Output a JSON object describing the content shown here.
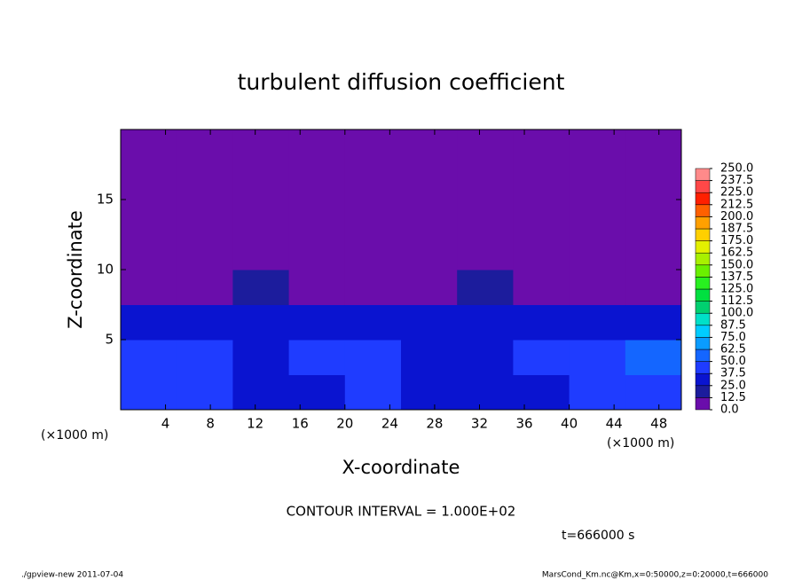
{
  "chart_data": {
    "type": "heatmap",
    "title": "turbulent diffusion coefficient",
    "xlabel": "X-coordinate",
    "ylabel": "Z-coordinate",
    "x_unit": "(×1000 m)",
    "note": "CONTOUR INTERVAL = 1.000E+02",
    "time_label": "t=666000 s",
    "footer_left": "./gpview-new   2011-07-04",
    "footer_right": "MarsCond_Km.nc@Km,x=0:50000,z=0:20000,t=666000",
    "x": [
      2.5,
      7.5,
      12.5,
      17.5,
      22.5,
      27.5,
      32.5,
      37.5,
      42.5,
      47.5
    ],
    "y": [
      1.25,
      3.75,
      6.25,
      8.75,
      11.25,
      13.75,
      16.25,
      18.75
    ],
    "z": [
      [
        40,
        45,
        35,
        30,
        40,
        35,
        30,
        35,
        40,
        45
      ],
      [
        45,
        40,
        35,
        40,
        45,
        35,
        30,
        40,
        45,
        50
      ],
      [
        35,
        30,
        35,
        25,
        30,
        35,
        35,
        30,
        25,
        30
      ],
      [
        8,
        10,
        15,
        8,
        8,
        10,
        15,
        8,
        6,
        8
      ],
      [
        4,
        6,
        8,
        6,
        4,
        4,
        6,
        6,
        4,
        4
      ],
      [
        3,
        2,
        4,
        2,
        2,
        3,
        4,
        3,
        3,
        2
      ],
      [
        2,
        2,
        2,
        2,
        2,
        2,
        2,
        2,
        2,
        2
      ],
      [
        2,
        2,
        2,
        2,
        2,
        2,
        2,
        2,
        2,
        2
      ]
    ],
    "xlim": [
      0,
      50
    ],
    "ylim": [
      0,
      20
    ],
    "xticks": [
      4,
      8,
      12,
      16,
      20,
      24,
      28,
      32,
      36,
      40,
      44,
      48
    ],
    "yticks": [
      5,
      10,
      15
    ],
    "levels": [
      {
        "value": 0,
        "label": "0.0"
      },
      12.5,
      {
        "value": 25,
        "label": "25.0"
      },
      37.5,
      {
        "value": 50,
        "label": "50.0"
      },
      62.5,
      {
        "value": 75,
        "label": "75.0"
      },
      87.5,
      {
        "value": 100,
        "label": "100.0"
      },
      112.5,
      {
        "value": 125,
        "label": "125.0"
      },
      137.5,
      {
        "value": 150,
        "label": "150.0"
      },
      162.5,
      {
        "value": 175,
        "label": "175.0"
      },
      187.5,
      {
        "value": 200,
        "label": "200.0"
      },
      212.5,
      {
        "value": 225,
        "label": "225.0"
      },
      237.5,
      {
        "value": 250,
        "label": "250.0"
      }
    ],
    "colors": [
      "#6a0dab",
      "#1c1c9c",
      "#0a14d0",
      "#1f3cff",
      "#1466ff",
      "#0a9cff",
      "#00ccff",
      "#00e0c8",
      "#00d070",
      "#00e040",
      "#28f020",
      "#6af000",
      "#a8f000",
      "#e4f000",
      "#ffd000",
      "#ffa000",
      "#ff6000",
      "#ff2000",
      "#ff4848",
      "#ff8a8a"
    ]
  }
}
